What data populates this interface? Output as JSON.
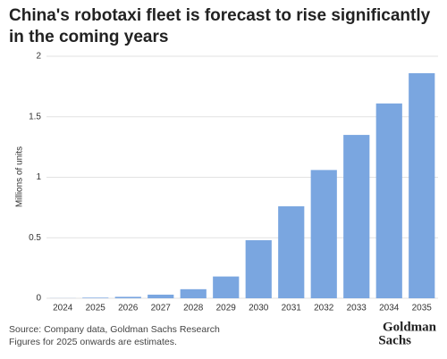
{
  "chart_data": {
    "type": "bar",
    "title": "China's robotaxi fleet is forecast to rise significantly in the coming years",
    "y_label": "Millions of units",
    "categories": [
      "2024",
      "2025",
      "2026",
      "2027",
      "2028",
      "2029",
      "2030",
      "2031",
      "2032",
      "2033",
      "2034",
      "2035"
    ],
    "values": [
      0.001,
      0.005,
      0.012,
      0.03,
      0.075,
      0.18,
      0.48,
      0.76,
      1.06,
      1.35,
      1.61,
      1.86
    ],
    "color": "#7aa6e0",
    "ylim": [
      0,
      2
    ],
    "yticks": [
      0,
      0.5,
      1,
      1.5,
      2
    ],
    "grid": true,
    "source": "Source: Company data, Goldman Sachs Research",
    "note": "Figures for 2025 onwards are estimates.",
    "logo": [
      "Goldman",
      "Sachs"
    ]
  }
}
